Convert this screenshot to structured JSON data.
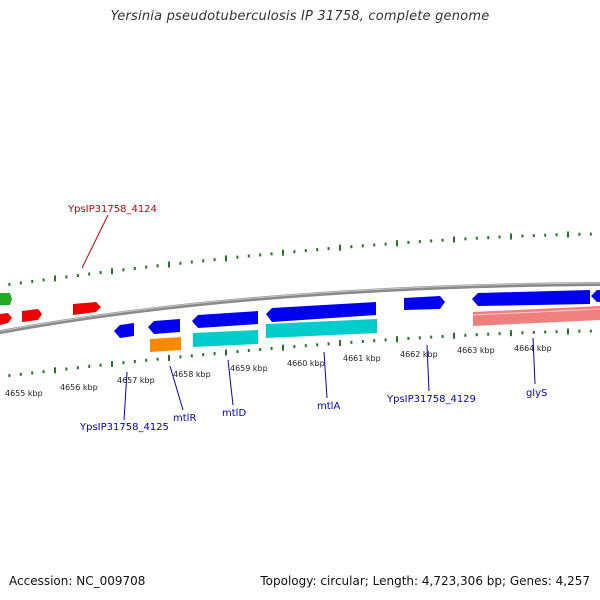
{
  "title": "Yersinia pseudotuberculosis IP 31758, complete genome",
  "footer": {
    "accession": "Accession: NC_009708",
    "summary": "Topology: circular; Length: 4,723,306 bp; Genes: 4,257"
  },
  "colors": {
    "forward_strand": "#0000ee",
    "reverse_strand": "#00cccc",
    "red_feature": "#ee0000",
    "orange_feature": "#ff8800",
    "green_feature": "#22aa22",
    "pink_feature": "#ee8080",
    "backbone": "#8a8a8a",
    "ticks": "#227722",
    "label_blue": "#0000cc",
    "label_red": "#cc0000"
  },
  "axis_ticks": [
    "4655 kbp",
    "4656 kbp",
    "4657 kbp",
    "4658 kbp",
    "4659 kbp",
    "4660 kbp",
    "4661 kbp",
    "4662 kbp",
    "4663 kbp",
    "4664 kbp"
  ],
  "gene_labels": [
    {
      "text": "YpsIP31758_4124",
      "color": "red"
    },
    {
      "text": "YpsIP31758_4125",
      "color": "blue"
    },
    {
      "text": "mtlR",
      "color": "blue"
    },
    {
      "text": "mtlD",
      "color": "blue"
    },
    {
      "text": "mtlA",
      "color": "blue"
    },
    {
      "text": "YpsIP31758_4129",
      "color": "blue"
    },
    {
      "text": "glyS",
      "color": "blue"
    }
  ]
}
